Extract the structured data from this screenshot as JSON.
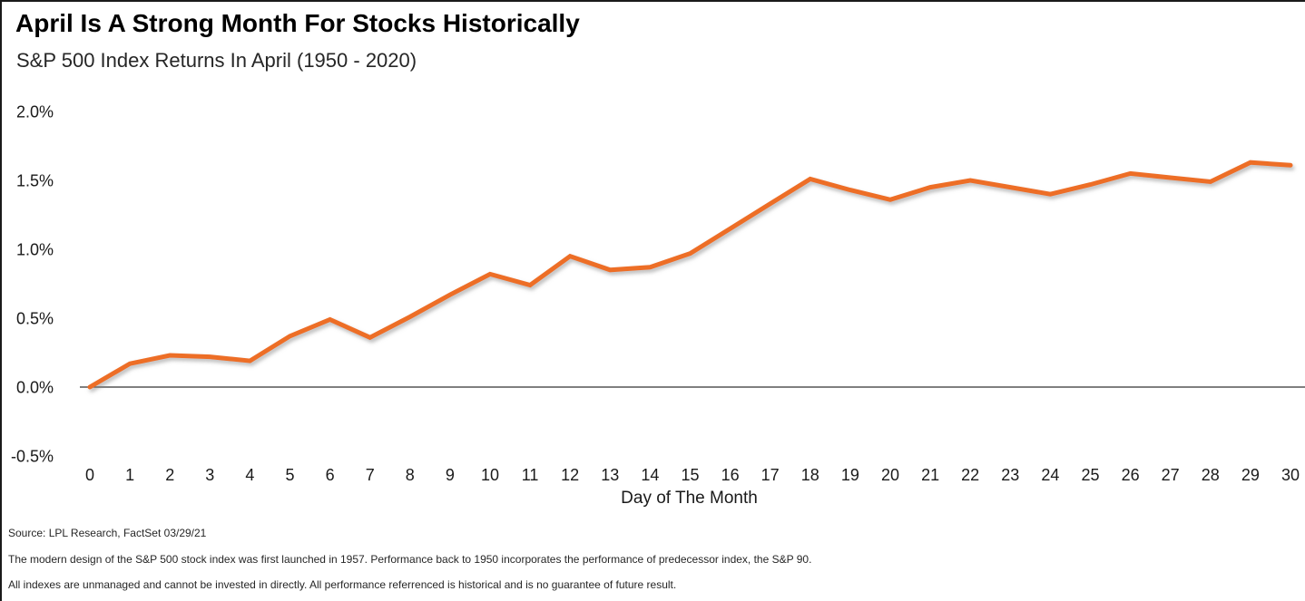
{
  "header": {
    "title": "April Is A Strong Month For Stocks Historically",
    "subtitle": "S&P 500 Index Returns In April (1950 - 2020)"
  },
  "chart_data": {
    "type": "line",
    "title": "April Is A Strong Month For Stocks Historically",
    "subtitle": "S&P 500 Index Returns In April (1950 - 2020)",
    "series_name": "S&P 500 Index cumulative return in April (1950 - 2020)",
    "x": [
      0,
      1,
      2,
      3,
      4,
      5,
      6,
      7,
      8,
      9,
      10,
      11,
      12,
      13,
      14,
      15,
      16,
      17,
      18,
      19,
      20,
      21,
      22,
      23,
      24,
      25,
      26,
      27,
      28,
      29,
      30
    ],
    "values": [
      0.0,
      0.17,
      0.23,
      0.22,
      0.19,
      0.37,
      0.49,
      0.36,
      0.51,
      0.67,
      0.82,
      0.74,
      0.95,
      0.85,
      0.87,
      0.97,
      1.15,
      1.33,
      1.51,
      1.43,
      1.36,
      1.45,
      1.5,
      1.45,
      1.4,
      1.47,
      1.55,
      1.52,
      1.49,
      1.63,
      1.61
    ],
    "xlabel": "Day of The Month",
    "ylabel": "",
    "y_ticks": [
      "2.0%",
      "1.5%",
      "1.0%",
      "0.5%",
      "0.0%",
      "-0.5%"
    ],
    "y_tick_values": [
      2.0,
      1.5,
      1.0,
      0.5,
      0.0,
      -0.5
    ],
    "ylim": [
      -0.5,
      2.0
    ],
    "xlim": [
      0,
      30
    ],
    "grid": false,
    "legend": "none",
    "line_color": "#ED6E28",
    "axis_color": "#333333"
  },
  "footer": {
    "source": "Source: LPL Research, FactSet 03/29/21",
    "note1": "The modern design of the S&P 500 stock index was first launched in 1957. Performance back to 1950 incorporates the performance of predecessor index, the S&P 90.",
    "note2": "All indexes are unmanaged and cannot be invested in directly. All performance referrenced is historical and is no guarantee of future result."
  }
}
